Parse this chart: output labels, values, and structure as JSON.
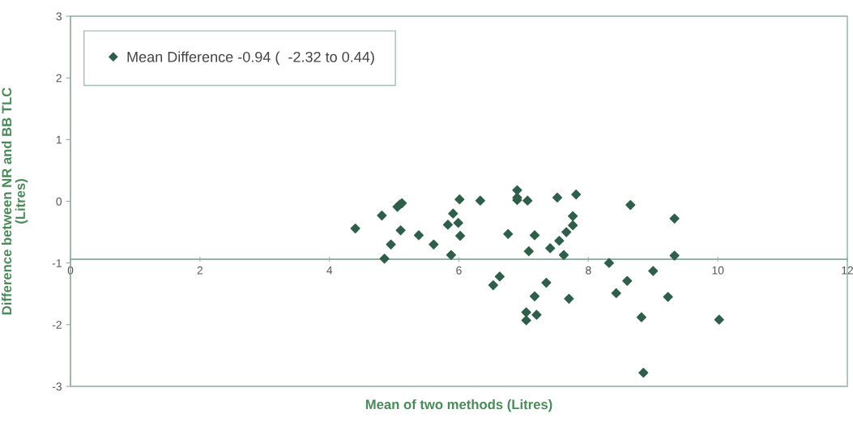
{
  "chart_data": {
    "type": "scatter",
    "xlabel": "Mean of two methods (Litres)",
    "ylabel": "Difference between NR and BB TLC\n(Litres)",
    "x": [
      4.4,
      4.81,
      4.85,
      4.95,
      5.05,
      5.09,
      5.12,
      5.1,
      5.38,
      5.61,
      5.83,
      5.91,
      5.88,
      5.99,
      6.02,
      6.01,
      6.33,
      6.53,
      6.63,
      6.76,
      6.9,
      6.9,
      6.9,
      7.06,
      7.17,
      7.08,
      7.52,
      7.81,
      7.76,
      7.76,
      7.66,
      7.55,
      7.41,
      7.62,
      8.32,
      8.65,
      9.0,
      8.6,
      8.43,
      9.23,
      9.33,
      9.33,
      8.82,
      8.85,
      7.35,
      7.17,
      7.04,
      7.04,
      7.2,
      7.7,
      10.02
    ],
    "series": [
      {
        "name": "Mean Difference -0.94 (  -2.32 to 0.44)",
        "color": "#2f5f4a",
        "values": [
          -0.44,
          -0.23,
          -0.93,
          -0.7,
          -0.09,
          -0.05,
          -0.03,
          -0.47,
          -0.55,
          -0.7,
          -0.38,
          -0.2,
          -0.87,
          -0.35,
          -0.56,
          0.03,
          0.01,
          -1.36,
          -1.22,
          -0.53,
          0.18,
          0.06,
          0.02,
          0.01,
          -0.55,
          -0.81,
          0.06,
          0.11,
          -0.24,
          -0.39,
          -0.5,
          -0.64,
          -0.76,
          -0.87,
          -1.0,
          -0.06,
          -1.13,
          -1.29,
          -1.49,
          -1.55,
          -0.28,
          -0.88,
          -1.88,
          -2.78,
          -1.32,
          -1.54,
          -1.8,
          -1.93,
          -1.84,
          -1.58,
          -1.92
        ]
      }
    ],
    "xlim": [
      0,
      12
    ],
    "xticks": [
      0,
      2,
      4,
      6,
      8,
      10,
      12
    ],
    "ylim": [
      -3,
      3
    ],
    "yticks": [
      -3,
      -2,
      -1,
      0,
      1,
      2,
      3
    ],
    "ref_lines": [
      {
        "axis": "y",
        "value": -0.94,
        "color": "#8fb0a0"
      }
    ],
    "marker": "diamond",
    "legend": "top left",
    "grid": false
  }
}
